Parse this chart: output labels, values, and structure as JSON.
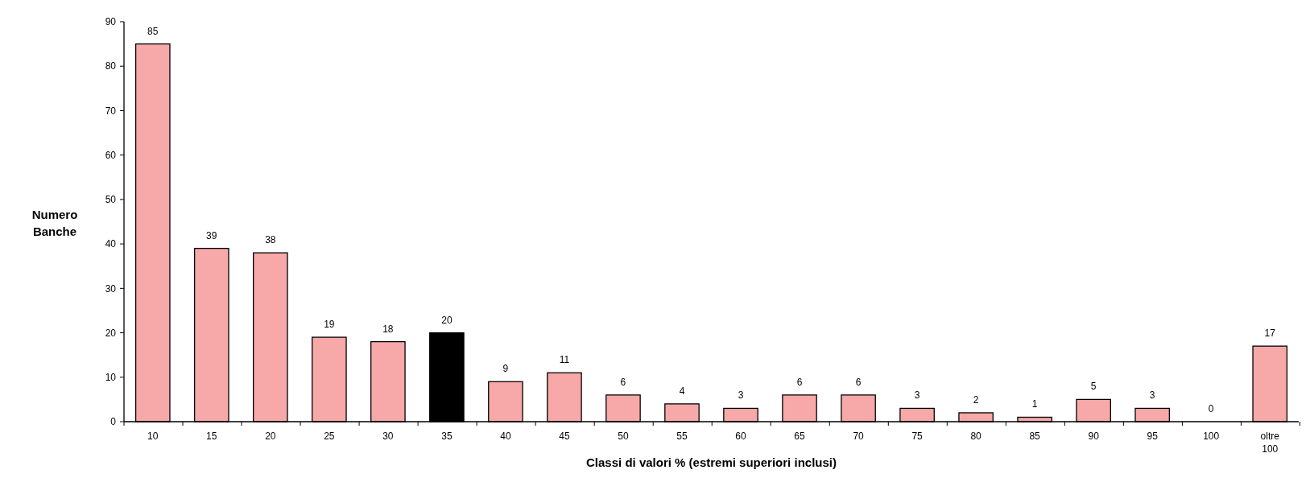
{
  "chart_data": {
    "type": "bar",
    "xlabel": "Classi di valori % (estremi superiori inclusi)",
    "ylabel": "Numero Banche",
    "categories": [
      "10",
      "15",
      "20",
      "25",
      "30",
      "35",
      "40",
      "45",
      "50",
      "55",
      "60",
      "65",
      "70",
      "75",
      "80",
      "85",
      "90",
      "95",
      "100",
      "oltre 100"
    ],
    "values": [
      85,
      39,
      38,
      19,
      18,
      20,
      9,
      11,
      6,
      4,
      3,
      6,
      6,
      3,
      2,
      1,
      5,
      3,
      0,
      17
    ],
    "colors": [
      "#f7a8a8",
      "#f7a8a8",
      "#f7a8a8",
      "#f7a8a8",
      "#f7a8a8",
      "#000000",
      "#f7a8a8",
      "#f7a8a8",
      "#f7a8a8",
      "#f7a8a8",
      "#f7a8a8",
      "#f7a8a8",
      "#f7a8a8",
      "#f7a8a8",
      "#f7a8a8",
      "#f7a8a8",
      "#f7a8a8",
      "#f7a8a8",
      "#f7a8a8",
      "#f7a8a8"
    ],
    "ylim": [
      0,
      90
    ],
    "yticks": [
      0,
      10,
      20,
      30,
      40,
      50,
      60,
      70,
      80,
      90
    ],
    "data_labels": true
  }
}
